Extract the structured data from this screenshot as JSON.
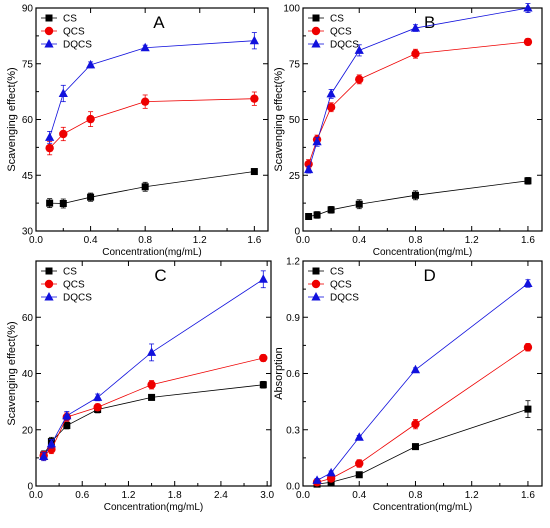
{
  "colors": {
    "CS": "#000000",
    "QCS": "#ee0000",
    "DQCS": "#1111dd"
  },
  "chart_data": [
    {
      "type": "line",
      "panel_label": "A",
      "xlabel": "Concentration(mg/mL)",
      "ylabel": "Scavenging effect(%)",
      "xlim": [
        0.0,
        1.7
      ],
      "ylim": [
        30,
        90
      ],
      "xticks": [
        "0.0",
        "0.4",
        "0.8",
        "1.2",
        "1.6"
      ],
      "xtick_values": [
        0.0,
        0.4,
        0.8,
        1.2,
        1.6
      ],
      "yticks": [
        "30",
        "45",
        "60",
        "75",
        "90"
      ],
      "ytick_values": [
        30,
        45,
        60,
        75,
        90
      ],
      "legend_position": "top-left",
      "x": [
        0.1,
        0.2,
        0.4,
        0.8,
        1.6
      ],
      "series": [
        {
          "name": "CS",
          "marker": "square",
          "values": [
            37.5,
            37.4,
            39.1,
            41.9,
            46.0
          ],
          "errors": [
            1.2,
            1.2,
            1.1,
            1.2,
            0.6
          ]
        },
        {
          "name": "QCS",
          "marker": "circle",
          "values": [
            52.3,
            56.1,
            60.1,
            64.8,
            65.6
          ],
          "errors": [
            1.8,
            1.8,
            2.0,
            1.8,
            1.8
          ]
        },
        {
          "name": "DQCS",
          "marker": "triangle",
          "values": [
            55.2,
            67.0,
            74.7,
            79.3,
            81.2
          ],
          "errors": [
            1.6,
            2.2,
            0.8,
            0.7,
            2.2
          ]
        }
      ]
    },
    {
      "type": "line",
      "panel_label": "B",
      "xlabel": "Concentration(mg/mL)",
      "ylabel": "Scavenging effect(%)",
      "xlim": [
        0.0,
        1.7
      ],
      "ylim": [
        0,
        100
      ],
      "xticks": [
        "0.0",
        "0.4",
        "0.8",
        "1.2",
        "1.6"
      ],
      "xtick_values": [
        0.0,
        0.4,
        0.8,
        1.2,
        1.6
      ],
      "yticks": [
        "0",
        "25",
        "50",
        "75",
        "100"
      ],
      "ytick_values": [
        0,
        25,
        50,
        75,
        100
      ],
      "legend_position": "top-left",
      "x": [
        0.04,
        0.1,
        0.2,
        0.4,
        0.8,
        1.6
      ],
      "series": [
        {
          "name": "CS",
          "marker": "square",
          "values": [
            6.5,
            7.2,
            9.5,
            12.0,
            16.0,
            22.5
          ],
          "errors": [
            1.0,
            1.5,
            1.5,
            2.0,
            2.0,
            1.5
          ]
        },
        {
          "name": "QCS",
          "marker": "circle",
          "values": [
            30.0,
            41.0,
            55.5,
            68.0,
            79.5,
            84.8
          ],
          "errors": [
            2.0,
            2.0,
            2.0,
            2.0,
            2.0,
            1.5
          ]
        },
        {
          "name": "DQCS",
          "marker": "triangle",
          "values": [
            27.5,
            40.0,
            61.5,
            81.0,
            91.0,
            100.0
          ],
          "errors": [
            1.5,
            2.0,
            2.0,
            2.5,
            1.5,
            2.0
          ]
        }
      ]
    },
    {
      "type": "line",
      "panel_label": "C",
      "xlabel": "Concentration(mg/mL)",
      "ylabel": "Scavenging effect(%)",
      "xlim": [
        0.0,
        3.05
      ],
      "ylim": [
        0,
        80
      ],
      "xticks": [
        "0.0",
        "0.6",
        "1.2",
        "1.8",
        "2.4",
        "3.0"
      ],
      "xtick_values": [
        0.0,
        0.6,
        1.2,
        1.8,
        2.4,
        3.0
      ],
      "yticks": [
        "0",
        "20",
        "40",
        "60"
      ],
      "ytick_values": [
        0,
        20,
        40,
        60
      ],
      "legend_position": "top-left",
      "x": [
        0.1,
        0.2,
        0.4,
        0.8,
        1.5,
        2.95
      ],
      "series": [
        {
          "name": "CS",
          "marker": "square",
          "values": [
            11.0,
            15.8,
            21.5,
            27.2,
            31.5,
            36.0
          ],
          "errors": [
            1.5,
            1.5,
            1.2,
            1.2,
            1.0,
            1.2
          ]
        },
        {
          "name": "QCS",
          "marker": "circle",
          "values": [
            10.8,
            13.0,
            24.5,
            28.0,
            36.0,
            45.5
          ],
          "errors": [
            1.5,
            1.5,
            1.5,
            1.2,
            1.5,
            1.2
          ]
        },
        {
          "name": "DQCS",
          "marker": "triangle",
          "values": [
            10.5,
            15.0,
            25.0,
            31.5,
            47.5,
            73.5
          ],
          "errors": [
            1.5,
            1.5,
            1.5,
            1.2,
            3.0,
            3.0
          ]
        }
      ]
    },
    {
      "type": "line",
      "panel_label": "D",
      "xlabel": "Concentration(mg/mL)",
      "ylabel": "Absorption",
      "xlim": [
        0.0,
        1.7
      ],
      "ylim": [
        0.0,
        1.2
      ],
      "xticks": [
        "0.0",
        "0.4",
        "0.8",
        "1.2",
        "1.6"
      ],
      "xtick_values": [
        0.0,
        0.4,
        0.8,
        1.2,
        1.6
      ],
      "yticks": [
        "0.0",
        "0.3",
        "0.6",
        "0.9",
        "1.2"
      ],
      "ytick_values": [
        0.0,
        0.3,
        0.6,
        0.9,
        1.2
      ],
      "legend_position": "top-left",
      "x": [
        0.1,
        0.2,
        0.4,
        0.8,
        1.6
      ],
      "series": [
        {
          "name": "CS",
          "marker": "square",
          "values": [
            0.01,
            0.02,
            0.06,
            0.21,
            0.41
          ],
          "errors": [
            0.01,
            0.01,
            0.01,
            0.015,
            0.045
          ]
        },
        {
          "name": "QCS",
          "marker": "circle",
          "values": [
            0.02,
            0.04,
            0.12,
            0.33,
            0.74
          ],
          "errors": [
            0.01,
            0.015,
            0.02,
            0.025,
            0.02
          ]
        },
        {
          "name": "DQCS",
          "marker": "triangle",
          "values": [
            0.03,
            0.07,
            0.26,
            0.62,
            1.08
          ],
          "errors": [
            0.01,
            0.01,
            0.01,
            0.01,
            0.02
          ]
        }
      ]
    }
  ]
}
